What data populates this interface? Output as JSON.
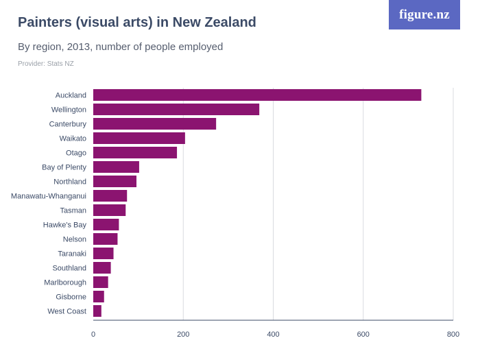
{
  "header": {
    "title": "Painters (visual arts) in New Zealand",
    "subtitle": "By region, 2013, number of people employed",
    "provider": "Provider: Stats NZ",
    "logo": "figure.nz"
  },
  "colors": {
    "bar": "#8b1470",
    "logo_bg": "#5b68c2",
    "title": "#3b4a66",
    "grid": "#d9dbe0"
  },
  "chart_data": {
    "type": "bar",
    "orientation": "horizontal",
    "title": "Painters (visual arts) in New Zealand",
    "subtitle": "By region, 2013, number of people employed",
    "categories": [
      "Auckland",
      "Wellington",
      "Canterbury",
      "Waikato",
      "Otago",
      "Bay of Plenty",
      "Northland",
      "Manawatu-Whanganui",
      "Tasman",
      "Hawke's Bay",
      "Nelson",
      "Taranaki",
      "Southland",
      "Marlborough",
      "Gisborne",
      "West Coast"
    ],
    "values": [
      729,
      369,
      273,
      204,
      186,
      102,
      96,
      75,
      72,
      57,
      54,
      45,
      39,
      33,
      24,
      18
    ],
    "xlim": [
      0,
      800
    ],
    "xticks": [
      0,
      200,
      400,
      600,
      800
    ],
    "grid": true,
    "legend": "none"
  }
}
